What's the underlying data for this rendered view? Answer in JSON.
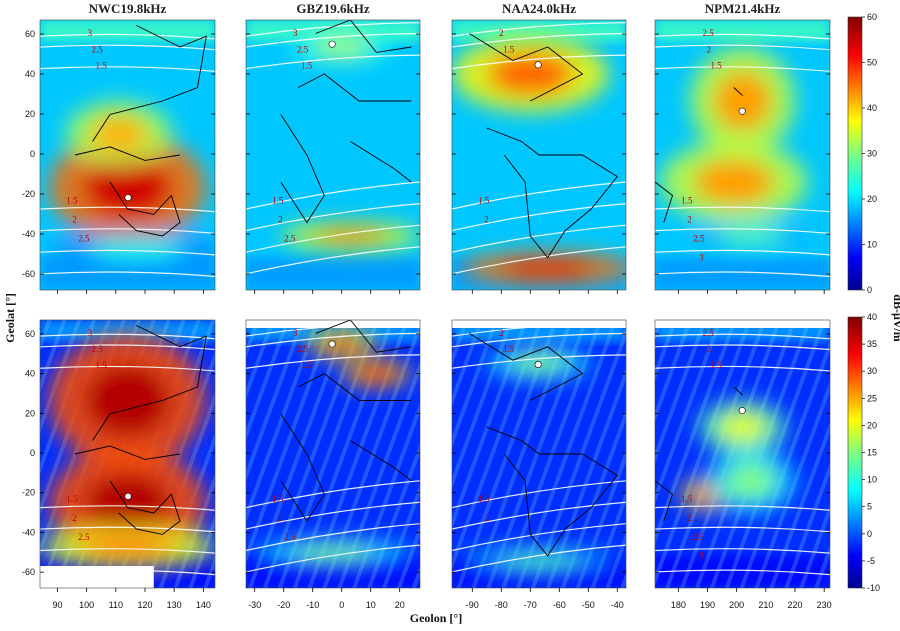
{
  "chart_data": {
    "type": "heatmap",
    "column_titles": [
      "NWC19.8kHz",
      "GBZ19.6kHz",
      "NAA24.0kHz",
      "NPM21.4kHz"
    ],
    "xlabel": "Geolon [°]",
    "ylabel": "Geolat [°]",
    "colorbar_label": "dB-μV/m",
    "colorbar_top": {
      "ticks": [
        "60",
        "50",
        "40",
        "30",
        "20",
        "10",
        "0"
      ],
      "range": [
        0,
        60
      ]
    },
    "colorbar_bottom": {
      "ticks": [
        "40",
        "35",
        "30",
        "25",
        "20",
        "15",
        "10",
        "5",
        "0",
        "-5",
        "-10"
      ],
      "range": [
        -10,
        40
      ]
    },
    "yticks_top": [
      "60",
      "40",
      "20",
      "0",
      "-20",
      "-40",
      "-60"
    ],
    "yticks_bottom": [
      "60",
      "40",
      "20",
      "0",
      "-20",
      "-40",
      "-60"
    ],
    "xticks": [
      [
        "90",
        "100",
        "110",
        "120",
        "130",
        "140"
      ],
      [
        "-30",
        "-20",
        "-10",
        "0",
        "10",
        "20"
      ],
      [
        "-90",
        "-80",
        "-70",
        "-60",
        "-50",
        "-40"
      ],
      [
        "180",
        "190",
        "200",
        "210",
        "220",
        "230"
      ]
    ],
    "transmitters": [
      {
        "name": "NWC",
        "lon": 114.2,
        "lat": -21.8
      },
      {
        "name": "GBZ",
        "lon": -3.3,
        "lat": 54.9
      },
      {
        "name": "NAA",
        "lon": -67.3,
        "lat": 44.6
      },
      {
        "name": "NPM",
        "lon": 201.9,
        "lat": 21.4
      }
    ],
    "contour_labels": {
      "NWC": {
        "north": [
          "3",
          "2.5",
          "1.5"
        ],
        "south": [
          "1.5",
          "2",
          "2.5"
        ]
      },
      "GBZ": {
        "north": [
          "3",
          "2.5",
          "1.5"
        ],
        "south": [
          "1.5",
          "2",
          "2.5"
        ]
      },
      "NAA": {
        "north": [
          "2",
          "1.5"
        ],
        "south": [
          "1.5",
          "2"
        ]
      },
      "NPM": {
        "north": [
          "2.5",
          "2",
          "1.5"
        ],
        "south": [
          "1.5",
          "2",
          "2.5",
          "3"
        ]
      }
    }
  }
}
